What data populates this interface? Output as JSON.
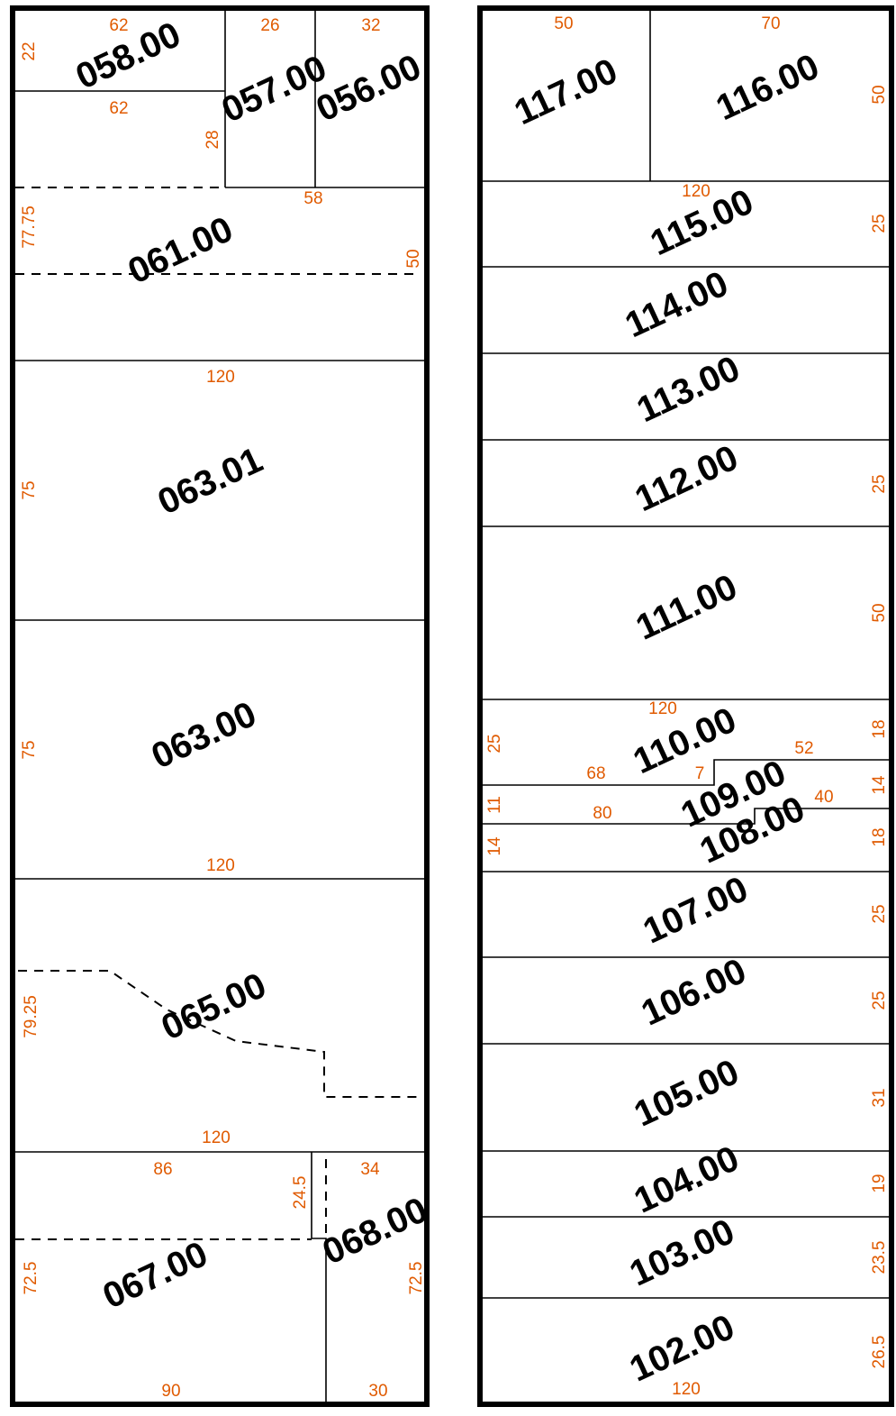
{
  "colors": {
    "dimension": "#e05a00",
    "line": "#000000",
    "background": "#ffffff"
  },
  "lots": {
    "l058": "058.00",
    "l057": "057.00",
    "l056": "056.00",
    "l061": "061.00",
    "l063_01": "063.01",
    "l063": "063.00",
    "l065": "065.00",
    "l067": "067.00",
    "l068": "068.00",
    "l117": "117.00",
    "l116": "116.00",
    "l115": "115.00",
    "l114": "114.00",
    "l113": "113.00",
    "l112": "112.00",
    "l111": "111.00",
    "l110": "110.00",
    "l109": "109.00",
    "l108": "108.00",
    "l107": "107.00",
    "l106": "106.00",
    "l105": "105.00",
    "l104": "104.00",
    "l103": "103.00",
    "l102": "102.00"
  },
  "dims": {
    "d1": "62",
    "d2": "26",
    "d3": "32",
    "d4": "22",
    "d5": "62",
    "d6": "28",
    "d7": "58",
    "d8": "77.75",
    "d9": "50",
    "d10": "120",
    "d11": "75",
    "d12": "75",
    "d13": "120",
    "d14": "79.25",
    "d15": "120",
    "d16": "86",
    "d17": "24.5",
    "d18": "34",
    "d19": "72.5",
    "d20": "72.5",
    "d21": "90",
    "d22": "30",
    "r1": "50",
    "r2": "70",
    "r3": "50",
    "r4": "120",
    "r5": "25",
    "r6": "25",
    "r7": "50",
    "r8": "120",
    "r9": "25",
    "r10": "18",
    "r11": "52",
    "r12": "68",
    "r13": "7",
    "r14": "14",
    "r15": "40",
    "r16": "11",
    "r17": "80",
    "r18": "14",
    "r19": "18",
    "r20": "25",
    "r21": "25",
    "r22": "31",
    "r23": "19",
    "r24": "23.5",
    "r25": "26.5",
    "r26": "120"
  }
}
